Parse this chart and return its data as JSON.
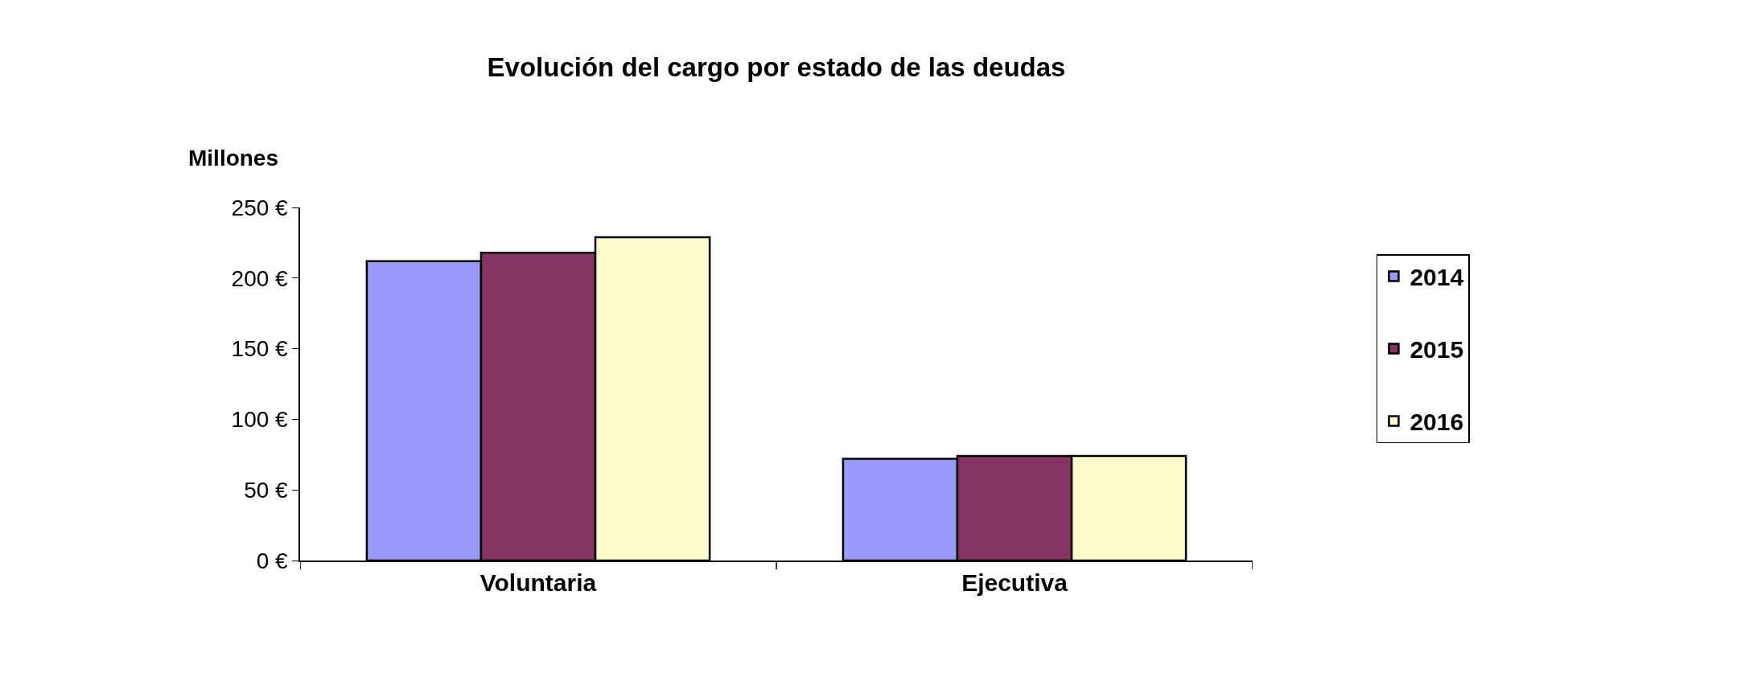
{
  "chart_data": {
    "type": "bar",
    "title": "Evolución del cargo por estado de las deudas",
    "ylabel": "Millones",
    "categories": [
      "Voluntaria",
      "Ejecutiva"
    ],
    "series": [
      {
        "name": "2014",
        "color": "#9999fa",
        "values": [
          212,
          72
        ]
      },
      {
        "name": "2015",
        "color": "#853563",
        "values": [
          218,
          74
        ]
      },
      {
        "name": "2016",
        "color": "#fefccd",
        "values": [
          229,
          74
        ]
      }
    ],
    "ylim": [
      0,
      250
    ],
    "yticks": [
      {
        "value": 0,
        "label": "0 €"
      },
      {
        "value": 50,
        "label": "50 €"
      },
      {
        "value": 100,
        "label": "100 €"
      },
      {
        "value": 150,
        "label": "150 €"
      },
      {
        "value": 200,
        "label": "200 €"
      },
      {
        "value": 250,
        "label": "250 €"
      }
    ],
    "grid": false,
    "legend": "right"
  }
}
